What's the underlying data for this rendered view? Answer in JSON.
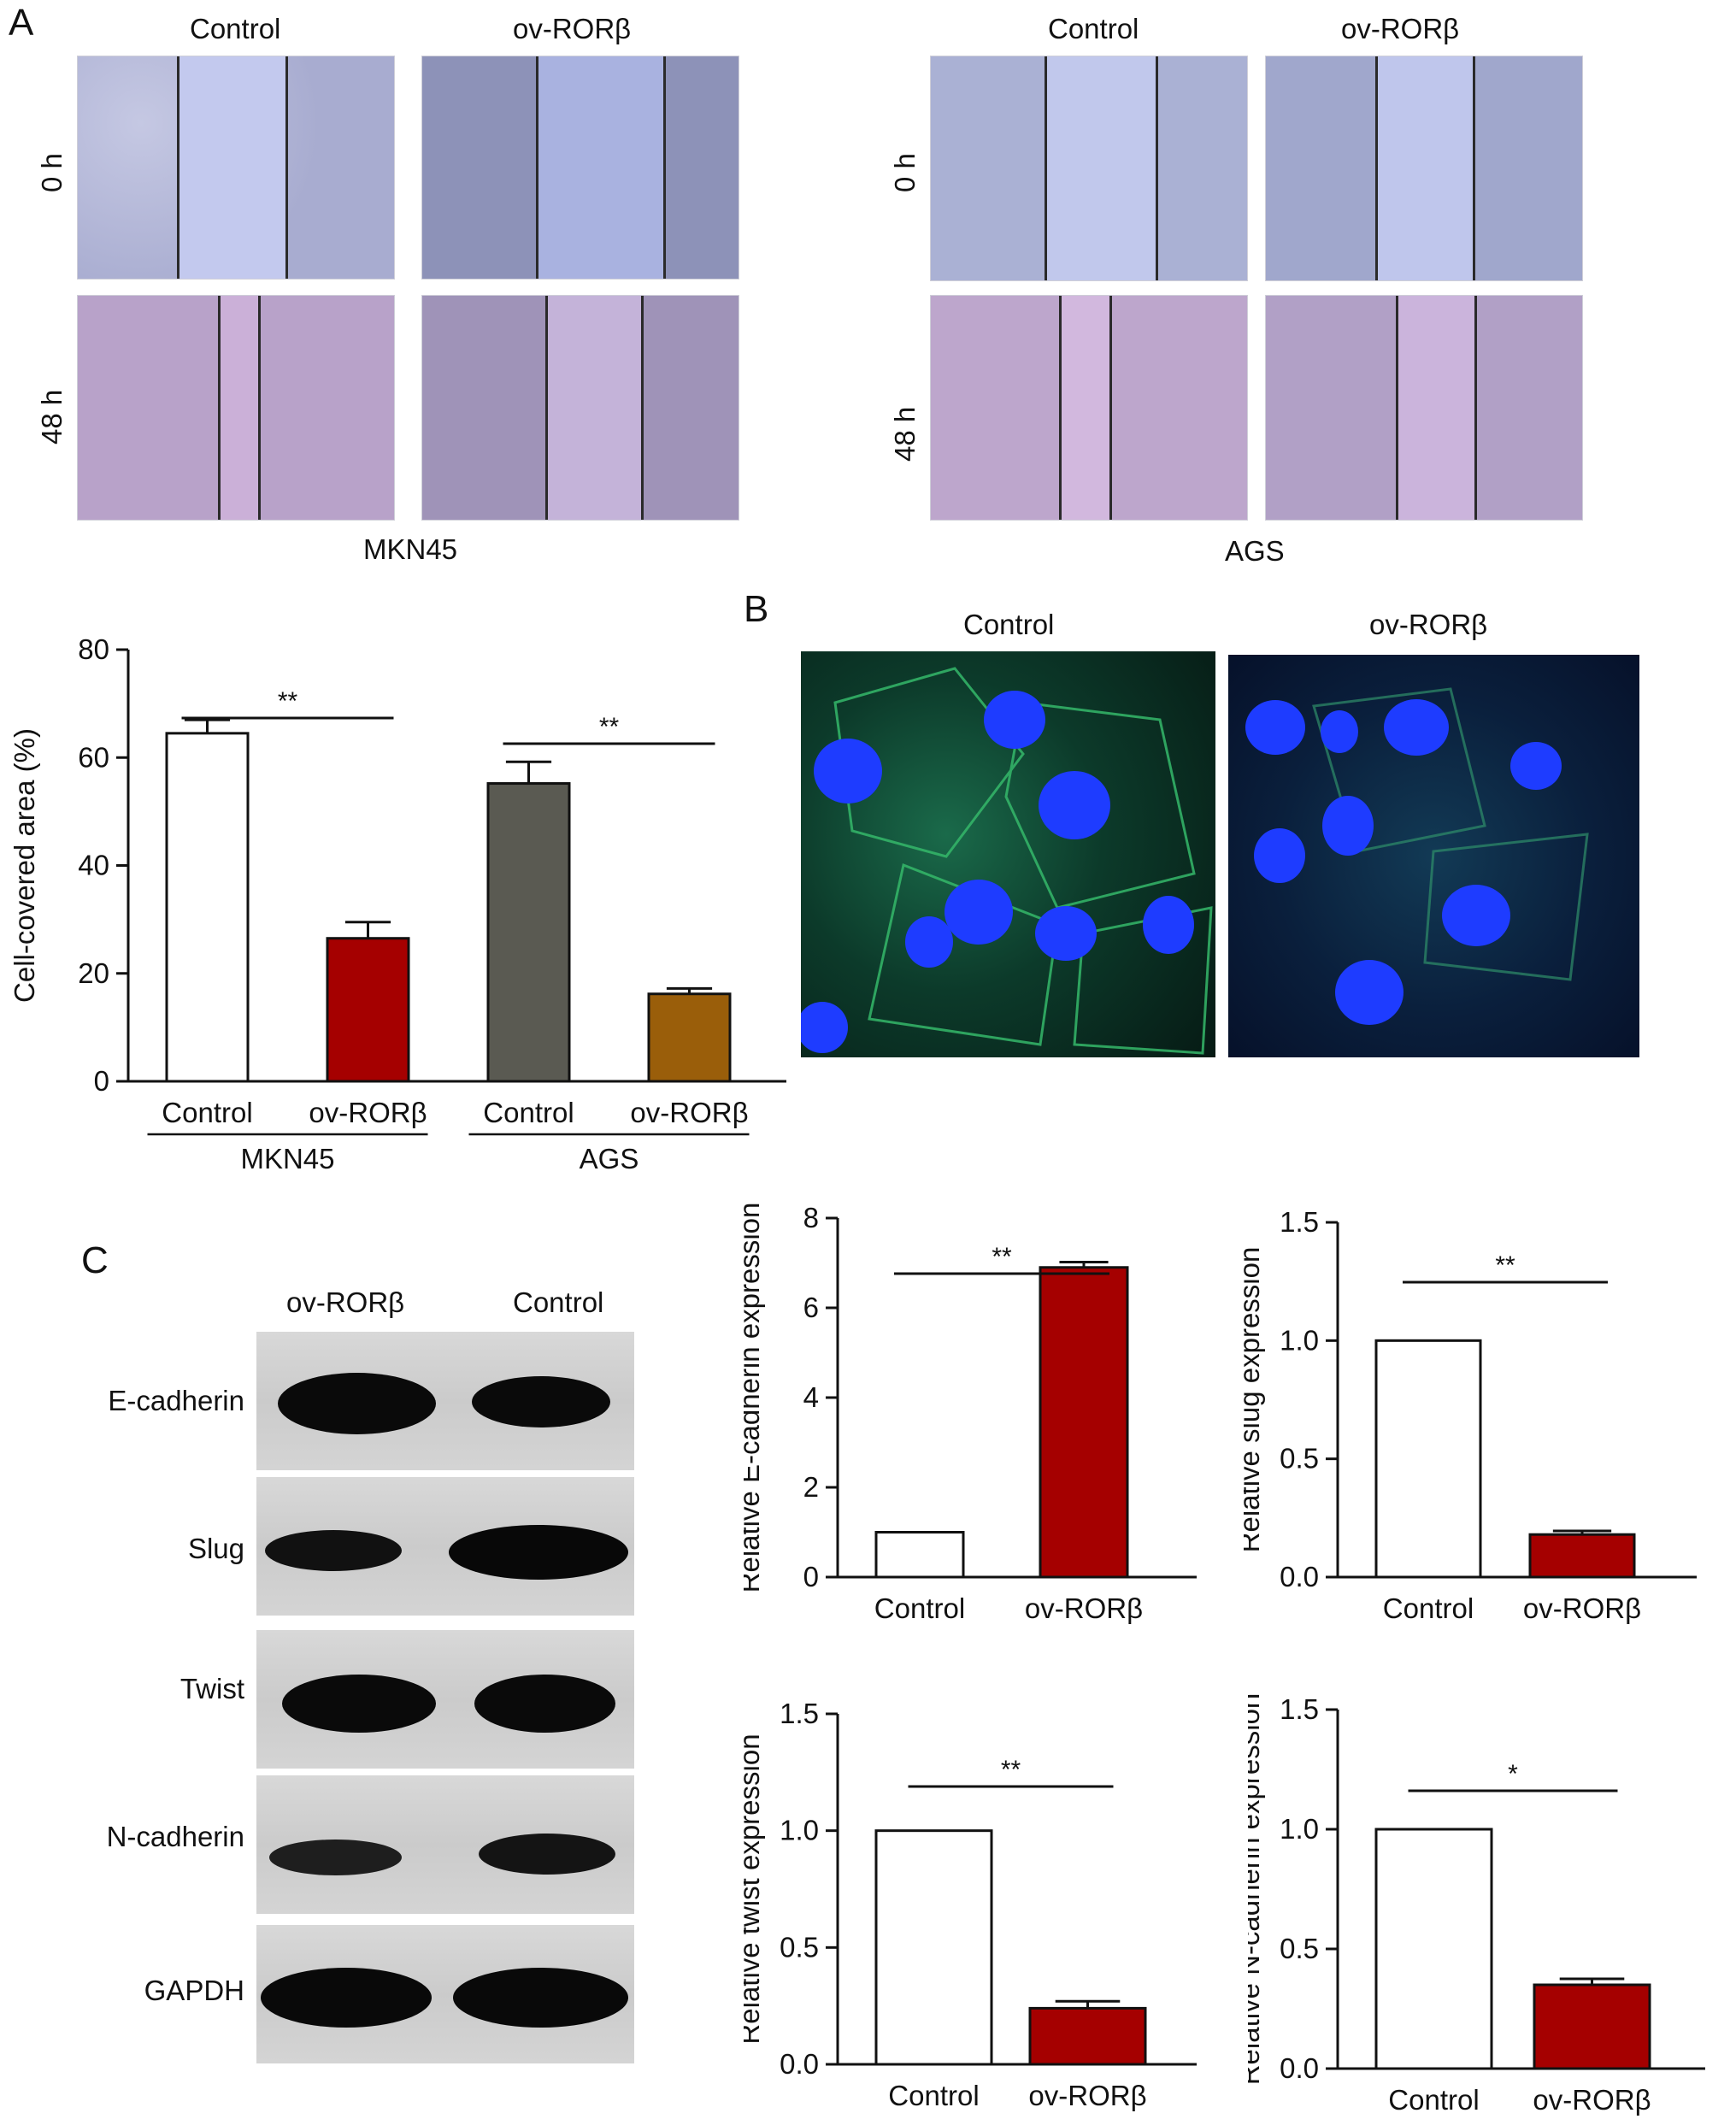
{
  "panel_labels": {
    "a": "A",
    "b": "B",
    "c": "C"
  },
  "panel_a": {
    "col_control": "Control",
    "col_ov": "ov-RORβ",
    "row_0h": "0 h",
    "row_48h": "48 h",
    "cell_line_left": "MKN45",
    "cell_line_right": "AGS"
  },
  "panel_b": {
    "col_control": "Control",
    "col_ov": "ov-RORβ"
  },
  "panel_c": {
    "col_ov": "ov-RORβ",
    "col_control": "Control",
    "proteins": [
      "E-cadherin",
      "Slug",
      "Twist",
      "N-cadherin",
      "GAPDH"
    ]
  },
  "chart_data": [
    {
      "type": "bar",
      "ylabel": "Cell-covered area (%)",
      "categories": [
        "Control",
        "ov-RORβ",
        "Control",
        "ov-RORβ"
      ],
      "groups": [
        "MKN45",
        "AGS"
      ],
      "values": [
        64.5,
        26.5,
        55.2,
        16.2
      ],
      "errors": [
        2.5,
        3.0,
        4.0,
        1.0
      ],
      "colors": [
        "#ffffff",
        "#a50000",
        "#5a5a52",
        "#9a5e0a"
      ],
      "ylim": [
        0,
        80
      ],
      "yticks": [
        "0",
        "20",
        "40",
        "60",
        "80"
      ],
      "significance": [
        "**",
        "**"
      ]
    },
    {
      "type": "bar",
      "ylabel": "Relative E-cadherin expression",
      "categories": [
        "Control",
        "ov-RORβ"
      ],
      "values": [
        1.0,
        6.9
      ],
      "errors": [
        0,
        0.12
      ],
      "colors": [
        "#ffffff",
        "#a50000"
      ],
      "ylim": [
        0,
        8
      ],
      "yticks": [
        "0",
        "2",
        "4",
        "6",
        "8"
      ],
      "significance": "**"
    },
    {
      "type": "bar",
      "ylabel": "Relative slug expression",
      "categories": [
        "Control",
        "ov-RORβ"
      ],
      "values": [
        1.0,
        0.18
      ],
      "errors": [
        0,
        0.015
      ],
      "colors": [
        "#ffffff",
        "#a50000"
      ],
      "ylim": [
        0,
        1.5
      ],
      "yticks": [
        "0.0",
        "0.5",
        "1.0",
        "1.5"
      ],
      "significance": "**"
    },
    {
      "type": "bar",
      "ylabel": "Relative twist expression",
      "categories": [
        "Control",
        "ov-RORβ"
      ],
      "values": [
        1.0,
        0.24
      ],
      "errors": [
        0,
        0.03
      ],
      "colors": [
        "#ffffff",
        "#a50000"
      ],
      "ylim": [
        0,
        1.5
      ],
      "yticks": [
        "0.0",
        "0.5",
        "1.0",
        "1.5"
      ],
      "significance": "**"
    },
    {
      "type": "bar",
      "ylabel": "Relative N-cadherin expression",
      "categories": [
        "Control",
        "ov-RORβ"
      ],
      "values": [
        1.0,
        0.35
      ],
      "errors": [
        0,
        0.025
      ],
      "colors": [
        "#ffffff",
        "#a50000"
      ],
      "ylim": [
        0,
        1.5
      ],
      "yticks": [
        "0.0",
        "0.5",
        "1.0",
        "1.5"
      ],
      "significance": "*"
    }
  ]
}
